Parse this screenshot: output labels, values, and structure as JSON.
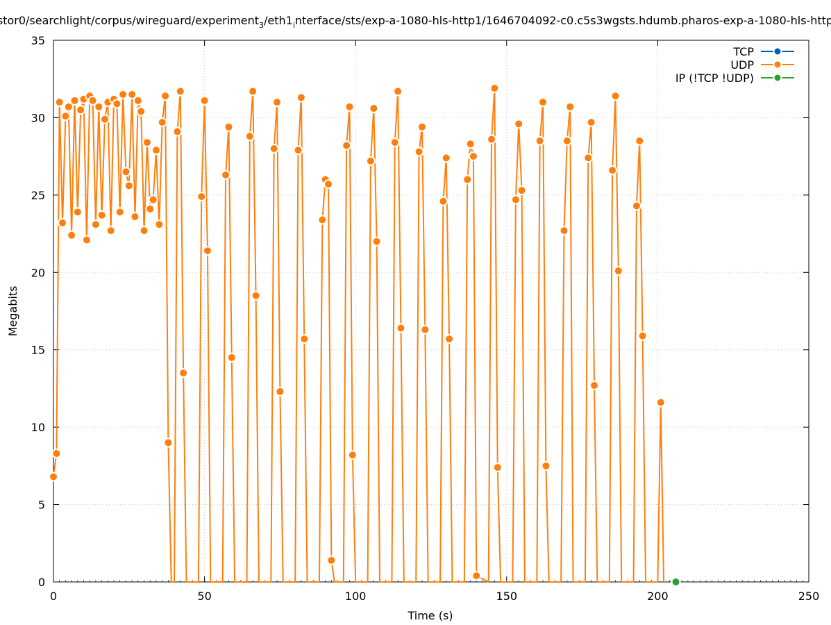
{
  "chart_data": {
    "type": "line",
    "title": "stor0/searchlight/corpus/wireguard/experiment",
    "title_sub": "3",
    "title_mid": "/eth1",
    "title_sub2": "i",
    "title_tail": "nterface/sts/exp-a-1080-hls-http1/1646704092-c0.c5s3wgsts.hdumb.pharos-exp-a-1080-hls-http",
    "xlabel": "Time (s)",
    "ylabel": "Megabits",
    "xlim": [
      0,
      250
    ],
    "ylim": [
      0,
      35
    ],
    "xticks": [
      0,
      50,
      100,
      150,
      200,
      250
    ],
    "yticks": [
      0,
      5,
      10,
      15,
      20,
      25,
      30,
      35
    ],
    "xtick_labels": [
      "0",
      "50",
      "100",
      "150",
      "200",
      "250"
    ],
    "ytick_labels": [
      "0",
      "5",
      "10",
      "15",
      "20",
      "25",
      "30",
      "35"
    ],
    "grid": true,
    "legend_position": "top-right",
    "series": [
      {
        "name": "TCP",
        "color": "#0060ad",
        "x": [],
        "y": []
      },
      {
        "name": "UDP",
        "color": "#ff7f0e",
        "x": [
          0,
          1,
          2,
          3,
          4,
          5,
          6,
          7,
          8,
          9,
          10,
          11,
          12,
          13,
          14,
          15,
          16,
          17,
          18,
          19,
          20,
          21,
          22,
          23,
          24,
          25,
          26,
          27,
          28,
          29,
          30,
          31,
          32,
          33,
          34,
          35,
          36,
          37,
          38,
          39,
          40,
          41,
          42,
          43,
          44,
          48,
          49,
          50,
          51,
          52,
          56,
          57,
          58,
          59,
          60,
          64,
          65,
          66,
          67,
          68,
          72,
          73,
          74,
          75,
          76,
          80,
          81,
          82,
          83,
          84,
          88,
          89,
          90,
          91,
          92,
          93,
          96,
          97,
          98,
          99,
          100,
          104,
          105,
          106,
          107,
          108,
          112,
          113,
          114,
          115,
          116,
          120,
          121,
          122,
          123,
          124,
          128,
          129,
          130,
          131,
          132,
          136,
          137,
          138,
          139,
          140,
          144,
          145,
          146,
          147,
          148,
          152,
          153,
          154,
          155,
          156,
          160,
          161,
          162,
          163,
          164,
          168,
          169,
          170,
          171,
          172,
          176,
          177,
          178,
          179,
          180,
          184,
          185,
          186,
          187,
          188,
          192,
          193,
          194,
          195,
          196,
          200,
          201,
          202
        ],
        "y": [
          6.8,
          8.3,
          31.0,
          23.2,
          30.1,
          30.7,
          22.4,
          31.1,
          23.9,
          30.5,
          31.2,
          22.1,
          31.4,
          31.1,
          23.1,
          30.7,
          23.7,
          29.9,
          31.0,
          22.7,
          31.2,
          30.9,
          23.9,
          31.5,
          26.5,
          25.6,
          31.5,
          23.6,
          31.1,
          30.4,
          22.7,
          28.4,
          24.1,
          24.7,
          27.9,
          23.1,
          29.7,
          31.4,
          9.0,
          0.0,
          0.0,
          29.1,
          31.7,
          13.5,
          0.0,
          0.0,
          24.9,
          31.1,
          21.4,
          0.0,
          0.0,
          26.3,
          29.4,
          14.5,
          0.0,
          0.0,
          28.8,
          31.7,
          18.5,
          0.0,
          0.0,
          28.0,
          31.0,
          12.3,
          0.0,
          0.0,
          27.9,
          31.3,
          15.7,
          0.0,
          0.0,
          23.4,
          26.0,
          25.7,
          1.4,
          0.0,
          0.0,
          28.2,
          30.7,
          8.2,
          0.0,
          0.0,
          27.2,
          30.6,
          22.0,
          0.0,
          0.0,
          28.4,
          31.7,
          16.4,
          0.0,
          0.0,
          27.8,
          29.4,
          16.3,
          0.0,
          0.0,
          24.6,
          27.4,
          15.7,
          0.0,
          0.0,
          26.0,
          28.3,
          27.5,
          0.4,
          0.0,
          28.6,
          31.9,
          7.4,
          0.0,
          0.0,
          24.7,
          29.6,
          25.3,
          0.0,
          0.0,
          28.5,
          31.0,
          7.5,
          0.0,
          0.0,
          22.7,
          28.5,
          30.7,
          0.0,
          0.0,
          27.4,
          29.7,
          12.7,
          0.0,
          0.0,
          26.6,
          31.4,
          20.1,
          0.0,
          0.0,
          24.3,
          28.5,
          15.9,
          0.0,
          0.0,
          11.6,
          0.0
        ]
      },
      {
        "name": "IP (!TCP  !UDP)",
        "color": "#2ca02c",
        "x": [
          206
        ],
        "y": [
          0
        ]
      }
    ]
  }
}
